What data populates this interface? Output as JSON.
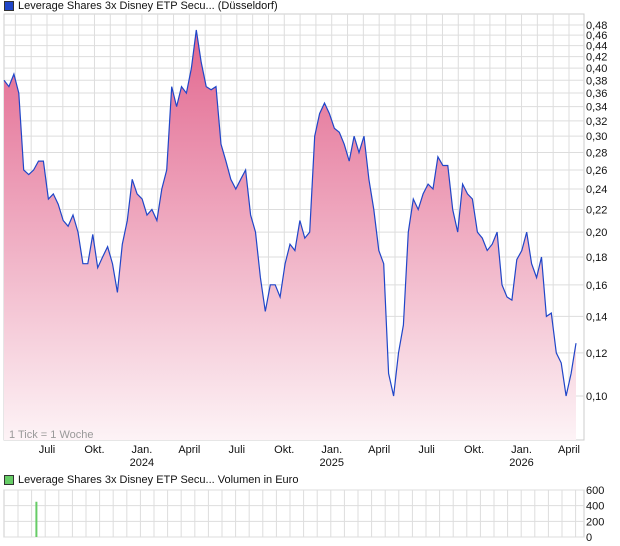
{
  "chart_data": [
    {
      "type": "area",
      "title": "Leverage Shares 3x Disney ETP Secu... (Düsseldorf)",
      "note": "1 Tick = 1 Woche",
      "y_scale": "log",
      "ylim": [
        0.085,
        0.49
      ],
      "y_ticks": [
        "0,48",
        "0,46",
        "0,44",
        "0,42",
        "0,40",
        "0,38",
        "0,36",
        "0,34",
        "0,32",
        "0,30",
        "0,28",
        "0,26",
        "0,24",
        "0,22",
        "0,20",
        "0,18",
        "0,16",
        "0,14",
        "0,12",
        "0,10"
      ],
      "y_tick_values": [
        0.48,
        0.46,
        0.44,
        0.42,
        0.4,
        0.38,
        0.36,
        0.34,
        0.32,
        0.3,
        0.28,
        0.26,
        0.24,
        0.22,
        0.2,
        0.18,
        0.16,
        0.14,
        0.12,
        0.1
      ],
      "x_ticks": [
        {
          "label": "Juli",
          "year": "",
          "month_index": 2
        },
        {
          "label": "Okt.",
          "year": "",
          "month_index": 5
        },
        {
          "label": "Jan.",
          "year": "2024",
          "month_index": 8
        },
        {
          "label": "April",
          "year": "",
          "month_index": 11
        },
        {
          "label": "Juli",
          "year": "",
          "month_index": 14
        },
        {
          "label": "Okt.",
          "year": "",
          "month_index": 17
        },
        {
          "label": "Jan.",
          "year": "2025",
          "month_index": 20
        },
        {
          "label": "April",
          "year": "",
          "month_index": 23
        },
        {
          "label": "Juli",
          "year": "",
          "month_index": 26
        },
        {
          "label": "Okt.",
          "year": "",
          "month_index": 29
        },
        {
          "label": "Jan.",
          "year": "2026",
          "month_index": 32
        },
        {
          "label": "April",
          "year": "",
          "month_index": 35
        }
      ],
      "values": [
        0.38,
        0.37,
        0.39,
        0.36,
        0.26,
        0.255,
        0.26,
        0.27,
        0.27,
        0.23,
        0.235,
        0.225,
        0.21,
        0.205,
        0.215,
        0.2,
        0.175,
        0.175,
        0.198,
        0.172,
        0.18,
        0.188,
        0.175,
        0.155,
        0.19,
        0.21,
        0.25,
        0.235,
        0.23,
        0.215,
        0.22,
        0.21,
        0.24,
        0.26,
        0.37,
        0.34,
        0.37,
        0.36,
        0.4,
        0.47,
        0.41,
        0.37,
        0.365,
        0.37,
        0.29,
        0.27,
        0.25,
        0.24,
        0.25,
        0.26,
        0.215,
        0.2,
        0.165,
        0.143,
        0.16,
        0.16,
        0.152,
        0.175,
        0.19,
        0.185,
        0.21,
        0.195,
        0.2,
        0.3,
        0.33,
        0.345,
        0.33,
        0.31,
        0.305,
        0.29,
        0.27,
        0.3,
        0.28,
        0.3,
        0.25,
        0.22,
        0.185,
        0.175,
        0.11,
        0.1,
        0.12,
        0.135,
        0.2,
        0.23,
        0.22,
        0.235,
        0.245,
        0.24,
        0.275,
        0.265,
        0.265,
        0.22,
        0.2,
        0.245,
        0.235,
        0.23,
        0.2,
        0.195,
        0.185,
        0.19,
        0.2,
        0.16,
        0.152,
        0.15,
        0.178,
        0.185,
        0.2,
        0.175,
        0.165,
        0.18,
        0.14,
        0.142,
        0.12,
        0.115,
        0.1,
        0.11,
        0.125
      ],
      "colors": {
        "line": "#2046c8",
        "fill_top": "#e2678f",
        "fill_bottom": "#fdf3f6",
        "grid": "#dddddd"
      }
    },
    {
      "type": "bar",
      "title": "Leverage Shares 3x Disney ETP Secu... Volumen in Euro",
      "ylim": [
        0,
        600
      ],
      "y_ticks": [
        "600",
        "400",
        "200",
        "0"
      ],
      "y_tick_values": [
        600,
        400,
        200,
        0
      ],
      "bars": [
        {
          "week": 9,
          "value": 450
        }
      ],
      "colors": {
        "bar": "#66cc66"
      }
    }
  ]
}
